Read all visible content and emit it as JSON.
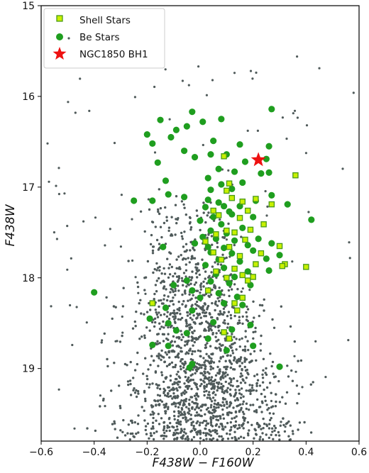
{
  "chart_data": {
    "type": "scatter",
    "xlabel": "F438W − F160W",
    "ylabel": "F438W",
    "xlim": [
      -0.6,
      0.6
    ],
    "ylim": [
      19.8,
      15.0
    ],
    "y_inverted": true,
    "x_ticks": [
      "−0.6",
      "−0.4",
      "−0.2",
      "0.0",
      "0.2",
      "0.4",
      "0.6"
    ],
    "y_ticks": [
      "15",
      "16",
      "17",
      "18",
      "19"
    ],
    "legend": {
      "placement": "top-left",
      "entries": [
        "Shell Stars",
        "Be Stars",
        "NGC1850 BH1"
      ]
    },
    "colors": {
      "background_stars": "#4f5a5a",
      "be_stars": "#1f9e1f",
      "shell_fill": "#c8f000",
      "shell_edge": "#4a9a1a",
      "bh1": "#ee1111"
    },
    "series": [
      {
        "name": "Shell Stars",
        "marker": "square",
        "points": [
          [
            0.09,
            16.66
          ],
          [
            0.11,
            16.96
          ],
          [
            0.36,
            16.87
          ],
          [
            0.1,
            17.04
          ],
          [
            0.12,
            17.12
          ],
          [
            0.16,
            17.16
          ],
          [
            0.21,
            17.13
          ],
          [
            0.27,
            17.19
          ],
          [
            0.05,
            17.26
          ],
          [
            0.18,
            17.26
          ],
          [
            0.07,
            17.31
          ],
          [
            0.15,
            17.34
          ],
          [
            0.24,
            17.41
          ],
          [
            0.1,
            17.48
          ],
          [
            0.13,
            17.5
          ],
          [
            0.19,
            17.47
          ],
          [
            0.06,
            17.52
          ],
          [
            0.17,
            17.58
          ],
          [
            0.02,
            17.6
          ],
          [
            0.11,
            17.66
          ],
          [
            0.3,
            17.65
          ],
          [
            0.23,
            17.73
          ],
          [
            0.05,
            17.72
          ],
          [
            0.15,
            17.76
          ],
          [
            0.08,
            17.8
          ],
          [
            0.21,
            17.85
          ],
          [
            0.32,
            17.85
          ],
          [
            0.13,
            17.9
          ],
          [
            0.06,
            17.93
          ],
          [
            0.2,
            17.99
          ],
          [
            0.1,
            18.0
          ],
          [
            0.18,
            18.03
          ],
          [
            0.31,
            17.87
          ],
          [
            0.4,
            17.88
          ],
          [
            0.16,
            17.97
          ],
          [
            0.03,
            18.14
          ],
          [
            -0.18,
            18.28
          ],
          [
            0.13,
            18.28
          ],
          [
            0.16,
            18.22
          ],
          [
            0.14,
            18.36
          ],
          [
            0.09,
            18.6
          ],
          [
            0.11,
            18.67
          ]
        ]
      },
      {
        "name": "Be Stars",
        "marker": "circle",
        "points": [
          [
            -0.03,
            16.17
          ],
          [
            0.27,
            16.14
          ],
          [
            -0.15,
            16.26
          ],
          [
            0.08,
            16.25
          ],
          [
            -0.2,
            16.42
          ],
          [
            -0.09,
            16.37
          ],
          [
            -0.05,
            16.33
          ],
          [
            0.01,
            16.28
          ],
          [
            -0.18,
            16.52
          ],
          [
            -0.11,
            16.45
          ],
          [
            0.05,
            16.49
          ],
          [
            0.15,
            16.53
          ],
          [
            0.26,
            16.55
          ],
          [
            -0.06,
            16.6
          ],
          [
            0.04,
            16.64
          ],
          [
            0.1,
            16.64
          ],
          [
            0.17,
            16.72
          ],
          [
            0.25,
            16.69
          ],
          [
            -0.16,
            16.73
          ],
          [
            -0.02,
            16.67
          ],
          [
            0.07,
            16.8
          ],
          [
            0.13,
            16.83
          ],
          [
            0.26,
            16.84
          ],
          [
            0.03,
            16.9
          ],
          [
            -0.13,
            16.93
          ],
          [
            0.08,
            16.97
          ],
          [
            0.16,
            16.95
          ],
          [
            0.04,
            17.03
          ],
          [
            0.12,
            17.02
          ],
          [
            -0.12,
            17.08
          ],
          [
            -0.06,
            17.11
          ],
          [
            0.03,
            17.14
          ],
          [
            0.07,
            17.17
          ],
          [
            0.21,
            17.15
          ],
          [
            0.27,
            17.09
          ],
          [
            0.02,
            17.22
          ],
          [
            0.09,
            17.21
          ],
          [
            0.15,
            17.21
          ],
          [
            -0.25,
            17.15
          ],
          [
            -0.18,
            17.15
          ],
          [
            0.11,
            17.27
          ],
          [
            0.33,
            17.19
          ],
          [
            0.05,
            17.33
          ],
          [
            0.12,
            17.3
          ],
          [
            0.2,
            17.33
          ],
          [
            0.42,
            17.36
          ],
          [
            0.0,
            17.37
          ],
          [
            0.08,
            17.41
          ],
          [
            0.16,
            17.45
          ],
          [
            0.04,
            17.48
          ],
          [
            0.1,
            17.51
          ],
          [
            0.01,
            17.55
          ],
          [
            0.06,
            17.57
          ],
          [
            0.13,
            17.59
          ],
          [
            0.22,
            17.57
          ],
          [
            -0.02,
            17.62
          ],
          [
            0.03,
            17.66
          ],
          [
            0.09,
            17.67
          ],
          [
            0.18,
            17.64
          ],
          [
            0.27,
            17.62
          ],
          [
            -0.14,
            17.66
          ],
          [
            0.04,
            17.72
          ],
          [
            0.12,
            17.73
          ],
          [
            0.2,
            17.7
          ],
          [
            0.3,
            17.75
          ],
          [
            0.07,
            17.8
          ],
          [
            0.15,
            17.82
          ],
          [
            0.25,
            17.79
          ],
          [
            0.02,
            17.86
          ],
          [
            0.09,
            17.89
          ],
          [
            0.18,
            17.93
          ],
          [
            0.06,
            17.96
          ],
          [
            0.13,
            17.99
          ],
          [
            0.26,
            17.92
          ],
          [
            -0.05,
            18.03
          ],
          [
            0.04,
            18.04
          ],
          [
            0.11,
            18.06
          ],
          [
            0.19,
            18.08
          ],
          [
            -0.1,
            18.08
          ],
          [
            -0.03,
            18.14
          ],
          [
            0.07,
            18.17
          ],
          [
            0.14,
            18.21
          ],
          [
            0.0,
            18.22
          ],
          [
            0.09,
            18.28
          ],
          [
            0.16,
            18.3
          ],
          [
            -0.13,
            18.33
          ],
          [
            -0.03,
            18.36
          ],
          [
            -0.19,
            18.45
          ],
          [
            -0.12,
            18.5
          ],
          [
            0.05,
            18.49
          ],
          [
            0.12,
            18.57
          ],
          [
            0.19,
            18.52
          ],
          [
            -0.09,
            18.58
          ],
          [
            -0.05,
            18.61
          ],
          [
            0.03,
            18.67
          ],
          [
            -0.12,
            18.75
          ],
          [
            0.2,
            18.75
          ],
          [
            0.1,
            18.8
          ],
          [
            -0.03,
            18.95
          ],
          [
            0.3,
            18.98
          ],
          [
            -0.04,
            18.99
          ],
          [
            -0.18,
            18.74
          ],
          [
            -0.4,
            18.16
          ],
          [
            0.23,
            16.85
          ]
        ]
      },
      {
        "name": "NGC1850 BH1",
        "marker": "star",
        "points": [
          [
            0.22,
            16.7
          ]
        ]
      }
    ]
  }
}
